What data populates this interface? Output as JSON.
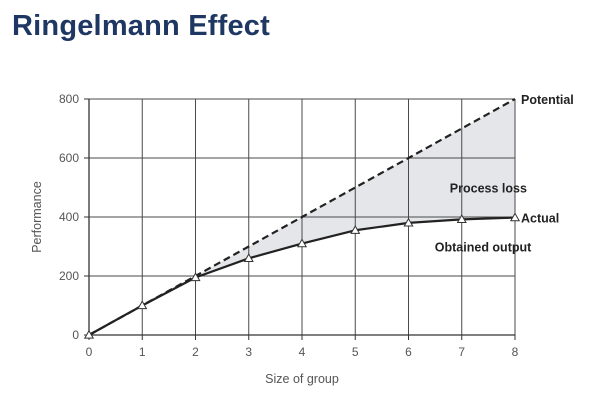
{
  "title": "Ringelmann Effect",
  "chart_data": {
    "type": "line",
    "title": "",
    "xlabel": "Size of group",
    "ylabel": "Performance",
    "xlim": [
      0,
      8
    ],
    "ylim": [
      0,
      800
    ],
    "x_ticks": [
      0,
      1,
      2,
      3,
      4,
      5,
      6,
      7,
      8
    ],
    "y_ticks": [
      0,
      200,
      400,
      600,
      800
    ],
    "grid": true,
    "series": [
      {
        "name": "Potential",
        "style": "dashed",
        "color": "#222222",
        "x": [
          0,
          1,
          2,
          3,
          4,
          5,
          6,
          7,
          8
        ],
        "y": [
          0,
          100,
          200,
          300,
          400,
          500,
          600,
          700,
          800
        ]
      },
      {
        "name": "Actual",
        "style": "solid",
        "marker": "triangle",
        "color": "#222222",
        "x": [
          0,
          1,
          2,
          3,
          4,
          5,
          6,
          7,
          8
        ],
        "y": [
          0,
          100,
          195,
          260,
          310,
          355,
          380,
          392,
          398
        ]
      }
    ],
    "shaded_region": {
      "between": [
        "Potential",
        "Actual"
      ],
      "color": "#e4e6ea"
    },
    "annotations": [
      {
        "text": "Potential",
        "x": 8,
        "y": 800,
        "kind": "series-end"
      },
      {
        "text": "Actual",
        "x": 8,
        "y": 398,
        "kind": "series-end"
      },
      {
        "text": "Process loss",
        "x": 7.5,
        "y": 500,
        "kind": "region"
      },
      {
        "text": "Obtained output",
        "x": 7.4,
        "y": 300,
        "kind": "region"
      }
    ]
  }
}
